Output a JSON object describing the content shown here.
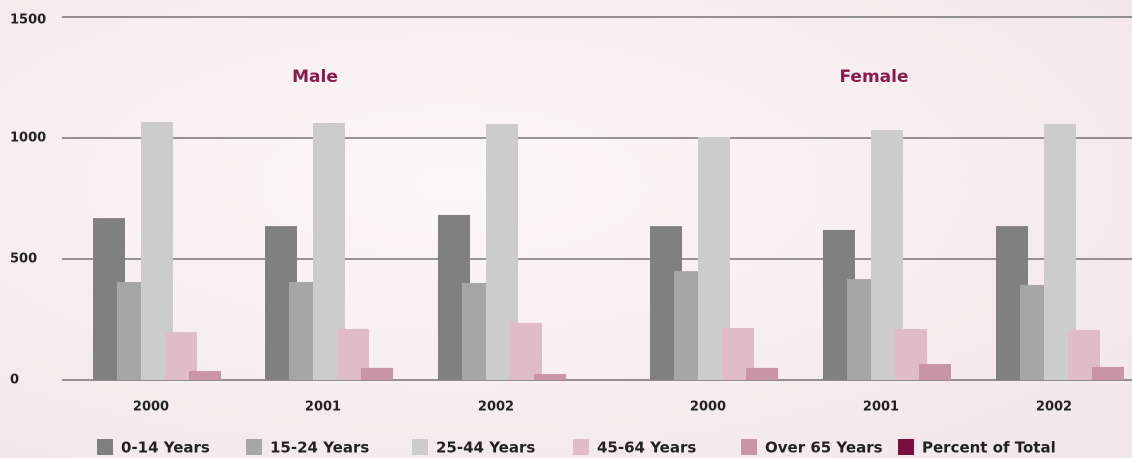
{
  "chart_data": {
    "type": "bar",
    "categories": [
      "2000",
      "2001",
      "2002",
      "2000",
      "2001",
      "2002"
    ],
    "annotations": [
      "Male",
      "Female"
    ],
    "series": [
      {
        "name": "0-14 Years",
        "color": "#808080",
        "values": [
          669,
          636,
          682,
          636,
          620,
          636
        ]
      },
      {
        "name": "15-24 Years",
        "color": "#a6a6a6",
        "values": [
          405,
          405,
          401,
          450,
          417,
          393
        ]
      },
      {
        "name": "25-44 Years",
        "color": "#cccccc",
        "values": [
          1066,
          1062,
          1058,
          1004,
          1033,
          1058
        ]
      },
      {
        "name": "45-64 Years",
        "color": "#e0bcc8",
        "values": [
          198,
          211,
          236,
          215,
          211,
          207
        ]
      },
      {
        "name": "Over 65 Years",
        "color": "#c994a6",
        "values": [
          37,
          50,
          25,
          50,
          66,
          54
        ]
      },
      {
        "name": "Percent of Total",
        "color": "#7a0f3f",
        "values": [
          null,
          null,
          null,
          null,
          null,
          null
        ]
      }
    ],
    "ylim": [
      0,
      1500
    ],
    "yticks": [
      0,
      500,
      1000,
      1500
    ],
    "grid": true
  }
}
